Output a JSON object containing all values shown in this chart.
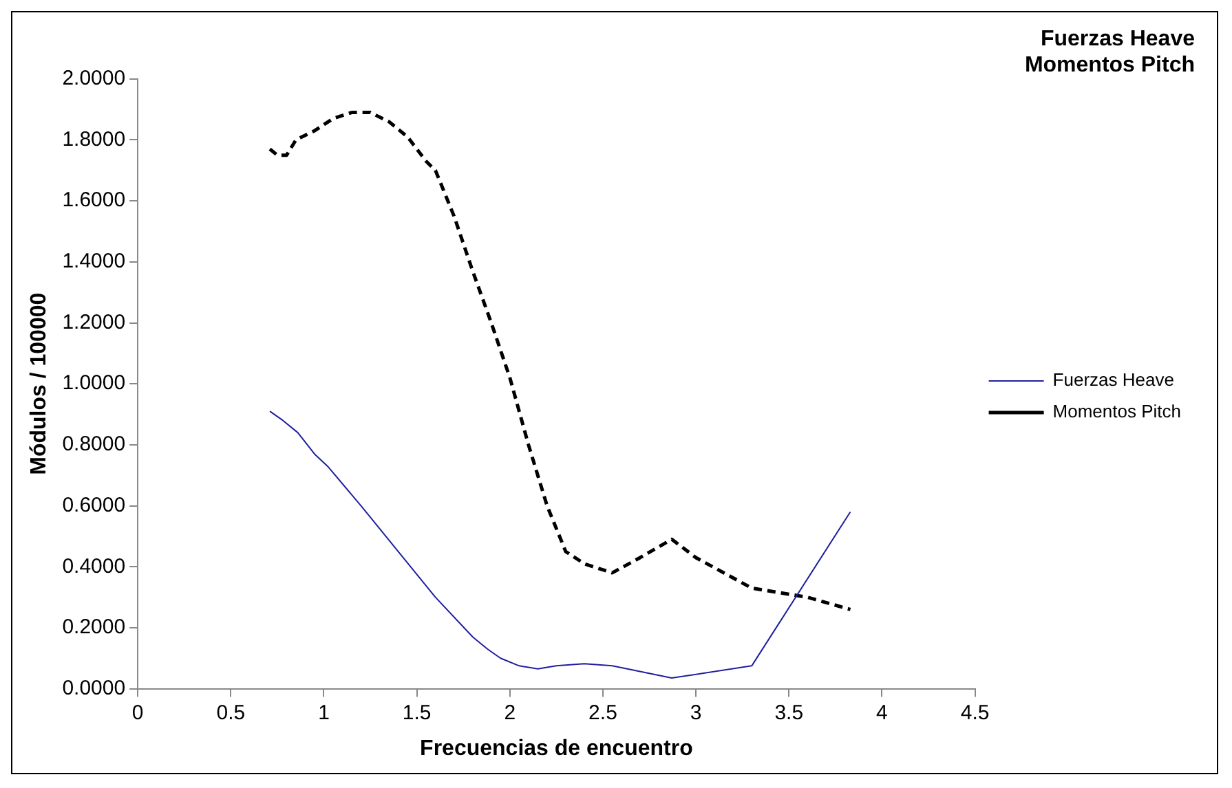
{
  "chart_data": {
    "type": "line",
    "title": "Fuerzas Heave\nMomentos Pitch",
    "xlabel": "Frecuencias de encuentro",
    "ylabel": "Módulos / 100000",
    "xlim": [
      0,
      4.5
    ],
    "xticks": [
      0,
      0.5,
      1,
      1.5,
      2,
      2.5,
      3,
      3.5,
      4,
      4.5
    ],
    "ylim": [
      0,
      2
    ],
    "yticks": [
      {
        "value": 0,
        "label": "0.0000"
      },
      {
        "value": 0.2,
        "label": "0.2000"
      },
      {
        "value": 0.4,
        "label": "0.4000"
      },
      {
        "value": 0.6,
        "label": "0.6000"
      },
      {
        "value": 0.8,
        "label": "0.8000"
      },
      {
        "value": 1,
        "label": "1.0000"
      },
      {
        "value": 1.2,
        "label": "1.2000"
      },
      {
        "value": 1.4,
        "label": "1.4000"
      },
      {
        "value": 1.6,
        "label": "1.6000"
      },
      {
        "value": 1.8,
        "label": "1.8000"
      },
      {
        "value": 2,
        "label": "2.0000"
      }
    ],
    "grid": false,
    "legend": "right",
    "marker": "none",
    "series": [
      {
        "name": "Fuerzas Heave",
        "color": "#1f1fa0",
        "line_style": "solid",
        "x": [
          0.71,
          0.78,
          0.86,
          0.95,
          1.02,
          1.2,
          1.4,
          1.6,
          1.8,
          1.88,
          1.95,
          2.05,
          2.15,
          2.25,
          2.4,
          2.55,
          2.87,
          3.3,
          3.83
        ],
        "values": [
          0.91,
          0.88,
          0.84,
          0.77,
          0.73,
          0.6,
          0.45,
          0.3,
          0.17,
          0.13,
          0.1,
          0.075,
          0.065,
          0.075,
          0.082,
          0.075,
          0.035,
          0.075,
          0.58
        ]
      },
      {
        "name": "Momentos Pitch",
        "color": "#000000",
        "line_style": "dashed",
        "x": [
          0.71,
          0.75,
          0.8,
          0.85,
          0.95,
          1.05,
          1.15,
          1.25,
          1.35,
          1.45,
          1.55,
          1.6,
          1.7,
          1.8,
          1.9,
          2.0,
          2.1,
          2.2,
          2.3,
          2.4,
          2.55,
          2.7,
          2.87,
          3.0,
          3.3,
          3.6,
          3.83
        ],
        "values": [
          1.77,
          1.75,
          1.75,
          1.8,
          1.83,
          1.87,
          1.89,
          1.89,
          1.86,
          1.81,
          1.73,
          1.7,
          1.55,
          1.37,
          1.2,
          1.02,
          0.8,
          0.6,
          0.45,
          0.41,
          0.38,
          0.43,
          0.49,
          0.43,
          0.33,
          0.3,
          0.26
        ]
      }
    ]
  }
}
